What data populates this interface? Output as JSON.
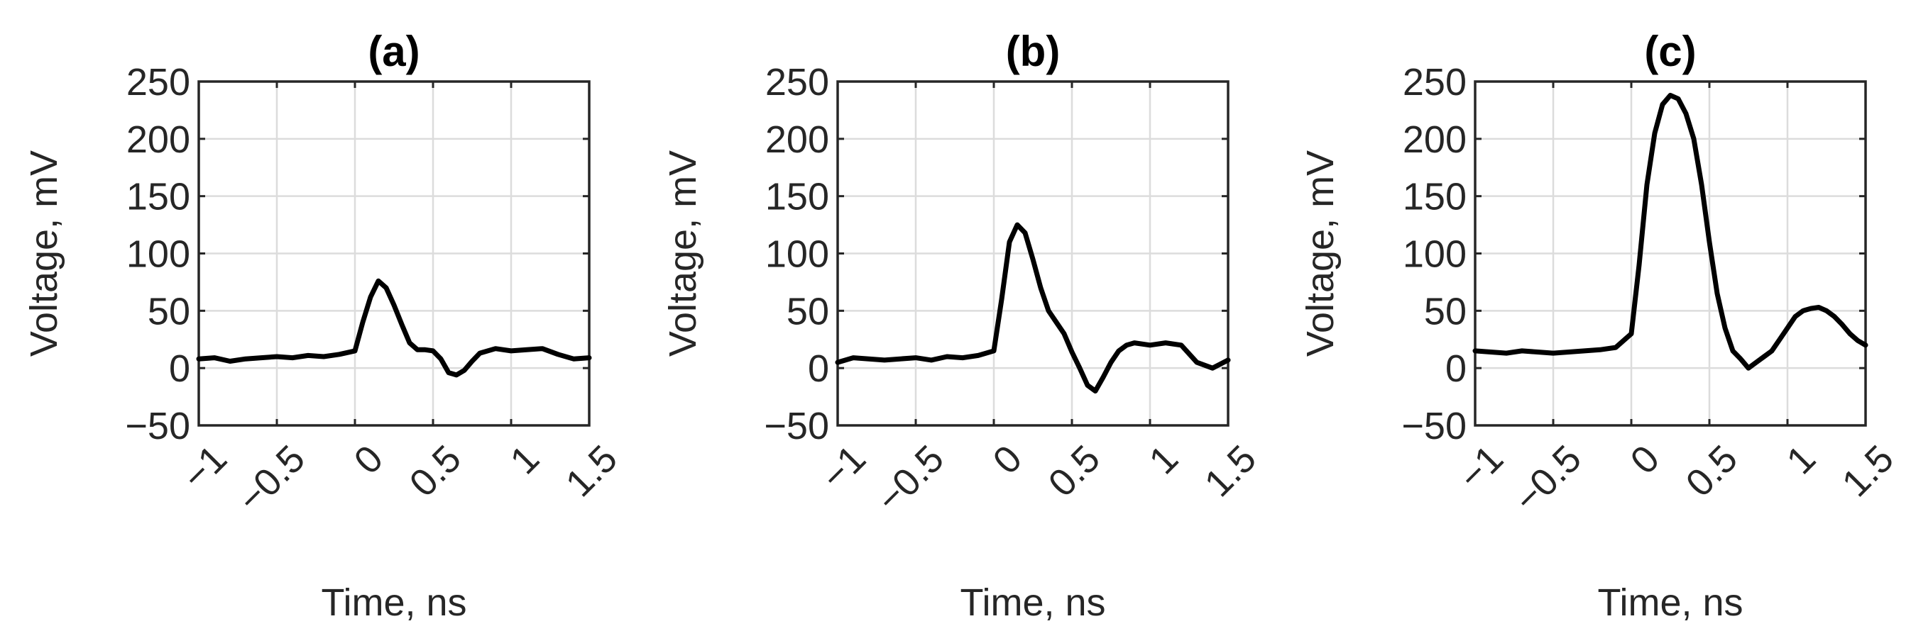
{
  "chart_data": [
    {
      "type": "line",
      "title": "(a)",
      "xlabel": "Time, ns",
      "ylabel": "Voltage, mV",
      "xlim": [
        -1,
        1.5
      ],
      "ylim": [
        -50,
        250
      ],
      "xticks": [
        -1,
        -0.5,
        0,
        0.5,
        1,
        1.5
      ],
      "xtick_labels": [
        "−1",
        "−0.5",
        "0",
        "0.5",
        "1",
        "1.5"
      ],
      "yticks": [
        -50,
        0,
        50,
        100,
        150,
        200,
        250
      ],
      "ytick_labels": [
        "−50",
        "0",
        "50",
        "100",
        "150",
        "200",
        "250"
      ],
      "grid": true,
      "color": "#000000",
      "series": [
        {
          "x": [
            -1,
            -0.9,
            -0.8,
            -0.7,
            -0.6,
            -0.5,
            -0.4,
            -0.3,
            -0.2,
            -0.1,
            0,
            0.05,
            0.1,
            0.15,
            0.2,
            0.25,
            0.3,
            0.35,
            0.4,
            0.45,
            0.5,
            0.55,
            0.6,
            0.65,
            0.7,
            0.75,
            0.8,
            0.9,
            1,
            1.1,
            1.2,
            1.3,
            1.4,
            1.5
          ],
          "y": [
            8,
            9,
            6,
            8,
            9,
            10,
            9,
            11,
            10,
            12,
            15,
            40,
            62,
            76,
            70,
            55,
            38,
            22,
            16,
            16,
            15,
            8,
            -4,
            -6,
            -2,
            6,
            13,
            17,
            15,
            16,
            17,
            12,
            8,
            9
          ]
        }
      ]
    },
    {
      "type": "line",
      "title": "(b)",
      "xlabel": "Time, ns",
      "ylabel": "Voltage, mV",
      "xlim": [
        -1,
        1.5
      ],
      "ylim": [
        -50,
        250
      ],
      "xticks": [
        -1,
        -0.5,
        0,
        0.5,
        1,
        1.5
      ],
      "xtick_labels": [
        "−1",
        "−0.5",
        "0",
        "0.5",
        "1",
        "1.5"
      ],
      "yticks": [
        -50,
        0,
        50,
        100,
        150,
        200,
        250
      ],
      "ytick_labels": [
        "−50",
        "0",
        "50",
        "100",
        "150",
        "200",
        "250"
      ],
      "grid": true,
      "color": "#000000",
      "series": [
        {
          "x": [
            -1,
            -0.9,
            -0.8,
            -0.7,
            -0.6,
            -0.5,
            -0.4,
            -0.3,
            -0.2,
            -0.1,
            0,
            0.05,
            0.1,
            0.15,
            0.2,
            0.25,
            0.3,
            0.35,
            0.4,
            0.45,
            0.5,
            0.55,
            0.6,
            0.65,
            0.7,
            0.75,
            0.8,
            0.85,
            0.9,
            1,
            1.1,
            1.2,
            1.3,
            1.4,
            1.5
          ],
          "y": [
            5,
            9,
            8,
            7,
            8,
            9,
            7,
            10,
            9,
            11,
            15,
            60,
            110,
            125,
            118,
            95,
            70,
            50,
            40,
            30,
            14,
            0,
            -15,
            -20,
            -8,
            5,
            15,
            20,
            22,
            20,
            22,
            20,
            5,
            0,
            7
          ]
        }
      ]
    },
    {
      "type": "line",
      "title": "(c)",
      "xlabel": "Time, ns",
      "ylabel": "Voltage, mV",
      "xlim": [
        -1,
        1.5
      ],
      "ylim": [
        -50,
        250
      ],
      "xticks": [
        -1,
        -0.5,
        0,
        0.5,
        1,
        1.5
      ],
      "xtick_labels": [
        "−1",
        "−0.5",
        "0",
        "0.5",
        "1",
        "1.5"
      ],
      "yticks": [
        -50,
        0,
        50,
        100,
        150,
        200,
        250
      ],
      "ytick_labels": [
        "−50",
        "0",
        "50",
        "100",
        "150",
        "200",
        "250"
      ],
      "grid": true,
      "color": "#000000",
      "series": [
        {
          "x": [
            -1,
            -0.9,
            -0.8,
            -0.7,
            -0.6,
            -0.5,
            -0.4,
            -0.3,
            -0.2,
            -0.1,
            0,
            0.05,
            0.1,
            0.15,
            0.2,
            0.25,
            0.3,
            0.35,
            0.4,
            0.45,
            0.5,
            0.55,
            0.6,
            0.65,
            0.7,
            0.75,
            0.8,
            0.85,
            0.9,
            0.95,
            1,
            1.05,
            1.1,
            1.15,
            1.2,
            1.25,
            1.3,
            1.35,
            1.4,
            1.45,
            1.5
          ],
          "y": [
            15,
            14,
            13,
            15,
            14,
            13,
            14,
            15,
            16,
            18,
            30,
            90,
            160,
            205,
            230,
            238,
            235,
            222,
            200,
            160,
            110,
            65,
            35,
            15,
            8,
            0,
            5,
            10,
            15,
            25,
            35,
            45,
            50,
            52,
            53,
            50,
            45,
            38,
            30,
            24,
            20
          ]
        }
      ]
    }
  ]
}
